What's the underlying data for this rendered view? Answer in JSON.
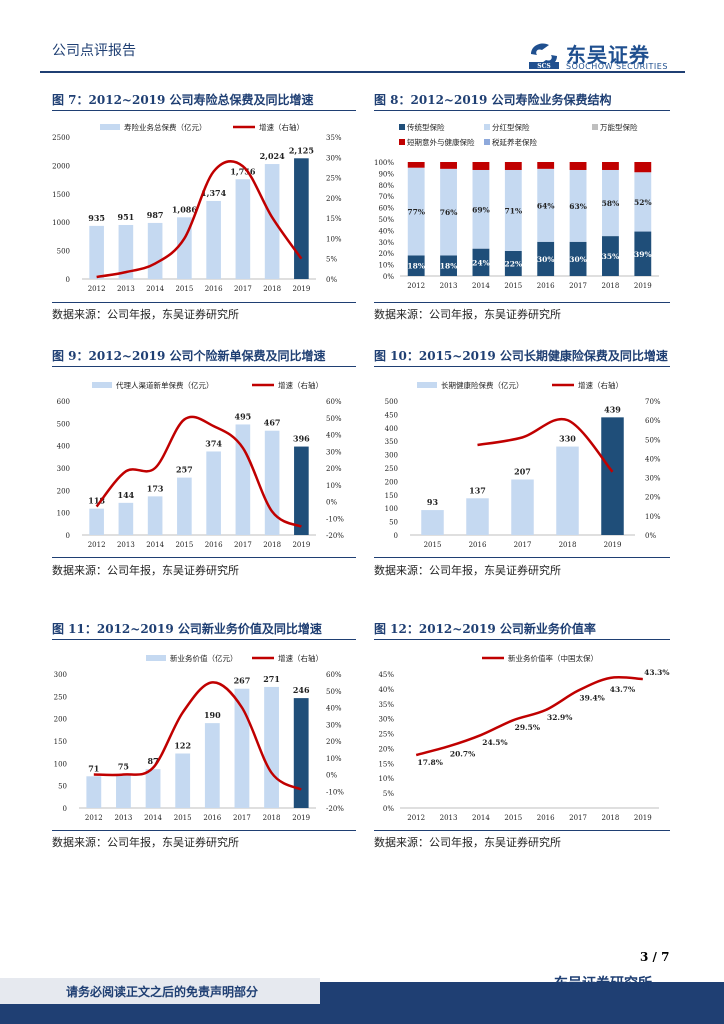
{
  "header": {
    "report_type": "公司点评报告",
    "logo_cn": "东吴证券",
    "logo_en": "SOOCHOW SECURITIES",
    "logo_mark": "SCS"
  },
  "source_text": "数据来源：公司年报，东吴证券研究所",
  "footer": {
    "page": "3 / 7",
    "disclaimer": "请务必阅读正文之后的免责声明部分",
    "org": "东吴证券研究所"
  },
  "colors": {
    "bar": "#c5d9f1",
    "bar_last": "#1f4e79",
    "line": "#c00000",
    "navy": "#1f3f73",
    "green_line": "#1f3f73"
  },
  "chart_data": [
    {
      "id": "fig7",
      "title": "图 7：2012~2019 公司寿险总保费及同比增速",
      "type": "bar+line",
      "categories": [
        "2012",
        "2013",
        "2014",
        "2015",
        "2016",
        "2017",
        "2018",
        "2019"
      ],
      "series": [
        {
          "name": "寿险业务总保费（亿元）",
          "axis": "left",
          "values": [
            935,
            951,
            987,
            1086,
            1374,
            1756,
            2024,
            2125
          ],
          "labels": [
            "935",
            "951",
            "987",
            "1,086",
            "1,374",
            "1,756",
            "2,024",
            "2,125"
          ]
        },
        {
          "name": "增速（右轴）",
          "axis": "right",
          "values": [
            0.5,
            1.7,
            3.8,
            10.0,
            26.5,
            27.8,
            15.2,
            5.0
          ]
        }
      ],
      "yleft": {
        "min": 0,
        "max": 2500,
        "ticks": [
          "0",
          "500",
          "1000",
          "1500",
          "2000",
          "2500"
        ]
      },
      "yright": {
        "min": 0,
        "max": 35,
        "ticks": [
          "0%",
          "5%",
          "10%",
          "15%",
          "20%",
          "25%",
          "30%",
          "35%"
        ]
      }
    },
    {
      "id": "fig8",
      "title": "图 8：2012~2019 公司寿险业务保费结构",
      "type": "stacked-bar-100",
      "categories": [
        "2012",
        "2013",
        "2014",
        "2015",
        "2016",
        "2017",
        "2018",
        "2019"
      ],
      "legend": [
        "传统型保险",
        "分红型保险",
        "万能型保险",
        "短期意外与健康保险",
        "税延养老保险"
      ],
      "legend_colors": [
        "#1f4e79",
        "#c5d9f1",
        "#bfbfbf",
        "#c00000",
        "#8ea9db"
      ],
      "series": [
        {
          "name": "传统型保险",
          "values": [
            18,
            18,
            24,
            22,
            30,
            30,
            35,
            39
          ],
          "labels": [
            "18%",
            "18%",
            "24%",
            "22%",
            "30%",
            "30%",
            "35%",
            "39%"
          ]
        },
        {
          "name": "分红型保险",
          "values": [
            77,
            76,
            69,
            71,
            64,
            63,
            58,
            52
          ],
          "labels": [
            "77%",
            "76%",
            "69%",
            "71%",
            "64%",
            "63%",
            "58%",
            "52%"
          ]
        },
        {
          "name": "万能型保险",
          "values": [
            0,
            0,
            0,
            0,
            0,
            0,
            0,
            0
          ]
        },
        {
          "name": "短期意外与健康保险",
          "values": [
            5,
            6,
            7,
            7,
            6,
            7,
            7,
            9
          ]
        },
        {
          "name": "税延养老保险",
          "values": [
            0,
            0,
            0,
            0,
            0,
            0,
            0,
            0
          ]
        }
      ],
      "yleft": {
        "min": 0,
        "max": 100,
        "ticks": [
          "0%",
          "10%",
          "20%",
          "30%",
          "40%",
          "50%",
          "60%",
          "70%",
          "80%",
          "90%",
          "100%"
        ]
      }
    },
    {
      "id": "fig9",
      "title": "图 9：2012~2019 公司个险新单保费及同比增速",
      "type": "bar+line",
      "categories": [
        "2012",
        "2013",
        "2014",
        "2015",
        "2016",
        "2017",
        "2018",
        "2019"
      ],
      "series": [
        {
          "name": "代理人渠道新单保费（亿元）",
          "axis": "left",
          "values": [
            118,
            144,
            173,
            257,
            374,
            495,
            467,
            396
          ],
          "labels": [
            "118",
            "144",
            "173",
            "257",
            "374",
            "495",
            "467",
            "396"
          ]
        },
        {
          "name": "增速（右轴）",
          "axis": "right",
          "values": [
            -3,
            18,
            20,
            49,
            45,
            32,
            -6,
            -15
          ]
        }
      ],
      "yleft": {
        "min": 0,
        "max": 600,
        "ticks": [
          "0",
          "100",
          "200",
          "300",
          "400",
          "500",
          "600"
        ]
      },
      "yright": {
        "min": -20,
        "max": 60,
        "ticks": [
          "-20%",
          "-10%",
          "0%",
          "10%",
          "20%",
          "30%",
          "40%",
          "50%",
          "60%"
        ]
      }
    },
    {
      "id": "fig10",
      "title": "图 10：2015~2019 公司长期健康险保费及同比增速",
      "type": "bar+line",
      "categories": [
        "2015",
        "2016",
        "2017",
        "2018",
        "2019"
      ],
      "series": [
        {
          "name": "长期健康险保费（亿元）",
          "axis": "left",
          "values": [
            93,
            137,
            207,
            330,
            439
          ],
          "labels": [
            "93",
            "137",
            "207",
            "330",
            "439"
          ]
        },
        {
          "name": "增速（右轴）",
          "axis": "right",
          "values": [
            null,
            47,
            51,
            60,
            33
          ]
        }
      ],
      "yleft": {
        "min": 0,
        "max": 500,
        "ticks": [
          "0",
          "50",
          "100",
          "150",
          "200",
          "250",
          "300",
          "350",
          "400",
          "450",
          "500"
        ]
      },
      "yright": {
        "min": 0,
        "max": 70,
        "ticks": [
          "0%",
          "10%",
          "20%",
          "30%",
          "40%",
          "50%",
          "60%",
          "70%"
        ]
      }
    },
    {
      "id": "fig11",
      "title": "图 11：2012~2019 公司新业务价值及同比增速",
      "type": "bar+line",
      "categories": [
        "2012",
        "2013",
        "2014",
        "2015",
        "2016",
        "2017",
        "2018",
        "2019"
      ],
      "series": [
        {
          "name": "新业务价值（亿元）",
          "axis": "left",
          "values": [
            71,
            75,
            87,
            122,
            190,
            267,
            271,
            246
          ],
          "labels": [
            "71",
            "75",
            "87",
            "122",
            "190",
            "267",
            "271",
            "246"
          ]
        },
        {
          "name": "增速（右轴）",
          "axis": "right",
          "values": [
            0,
            0,
            4,
            37,
            55,
            40,
            1,
            -9
          ]
        }
      ],
      "yleft": {
        "min": 0,
        "max": 300,
        "ticks": [
          "0",
          "50",
          "100",
          "150",
          "200",
          "250",
          "300"
        ]
      },
      "yright": {
        "min": -20,
        "max": 60,
        "ticks": [
          "-20%",
          "-10%",
          "0%",
          "10%",
          "20%",
          "30%",
          "40%",
          "50%",
          "60%"
        ]
      }
    },
    {
      "id": "fig12",
      "title": "图 12：2012~2019 公司新业务价值率",
      "type": "line",
      "categories": [
        "2012",
        "2013",
        "2014",
        "2015",
        "2016",
        "2017",
        "2018",
        "2019"
      ],
      "series": [
        {
          "name": "新业务价值率（中国太保）",
          "axis": "left",
          "values": [
            17.8,
            20.7,
            24.5,
            29.5,
            32.9,
            39.4,
            43.7,
            43.3
          ],
          "labels": [
            "17.8%",
            "20.7%",
            "24.5%",
            "29.5%",
            "32.9%",
            "39.4%",
            "43.7%",
            "43.3%"
          ]
        }
      ],
      "yleft": {
        "min": 0,
        "max": 45,
        "ticks": [
          "0%",
          "5%",
          "10%",
          "15%",
          "20%",
          "25%",
          "30%",
          "35%",
          "40%",
          "45%"
        ]
      }
    }
  ]
}
